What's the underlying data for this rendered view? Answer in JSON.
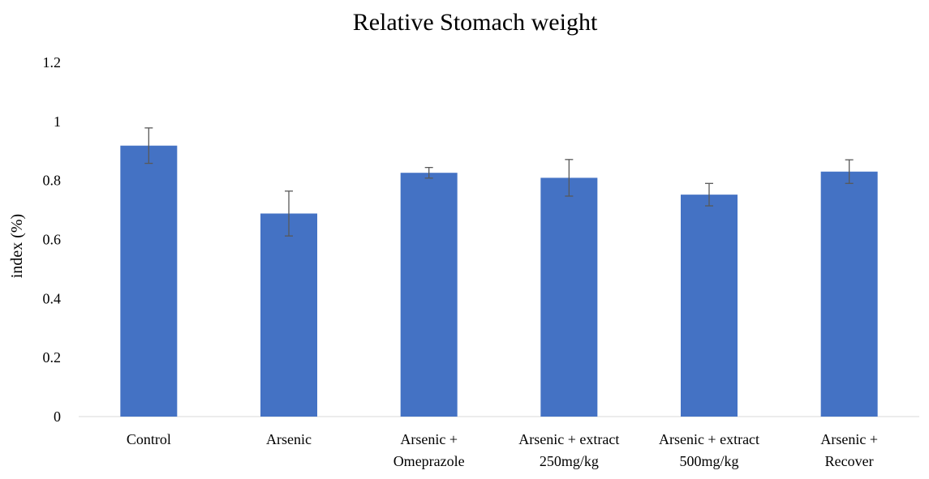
{
  "chart_data": {
    "type": "bar",
    "title": "Relative Stomach weight",
    "xlabel": "",
    "ylabel": "index (%)",
    "ylim": [
      0,
      1.2
    ],
    "yticks": [
      "0",
      "0.2",
      "0.4",
      "0.6",
      "0.8",
      "1",
      "1.2"
    ],
    "grid": false,
    "legend": "none",
    "categories": [
      [
        "Control"
      ],
      [
        "Arsenic"
      ],
      [
        "Arsenic +",
        "Omeprazole"
      ],
      [
        "Arsenic + extract",
        "250mg/kg"
      ],
      [
        "Arsenic + extract",
        "500mg/kg"
      ],
      [
        "Arsenic +",
        "Recover"
      ]
    ],
    "values": [
      0.918,
      0.688,
      0.826,
      0.809,
      0.752,
      0.83
    ],
    "errors": [
      0.06,
      0.076,
      0.018,
      0.062,
      0.038,
      0.04
    ],
    "bar_color": "#4472C4",
    "error_color": "#595959"
  }
}
